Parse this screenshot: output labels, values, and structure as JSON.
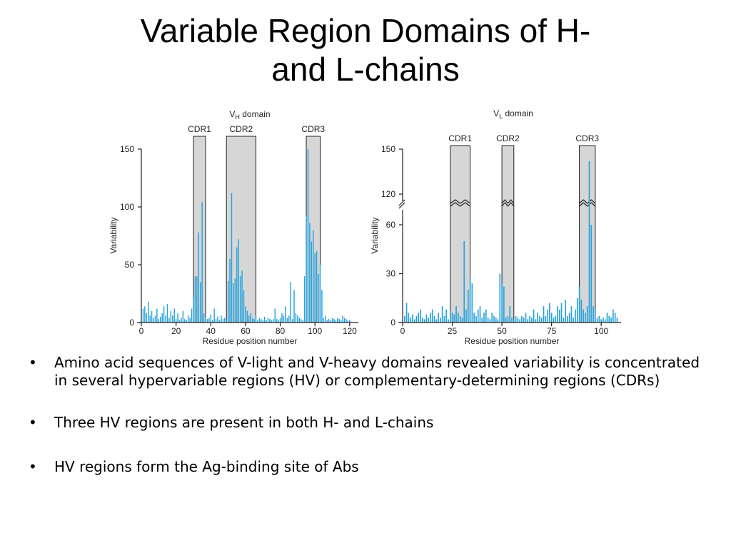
{
  "title": {
    "line1": "Variable Region Domains of H-",
    "line2": "and L-chains"
  },
  "bullet_glyph": "•",
  "bullets": [
    "Amino acid sequences of V-light and V-heavy domains revealed variability is concentrated in several hypervariable regions (HV) or complementary-determining regions (CDRs)",
    "Three HV regions are present in both H- and L-chains",
    "HV regions form the Ag-binding site of Abs"
  ],
  "colors": {
    "bar": "#29a3dd",
    "cdr_fill": "#d6d6d6",
    "axis": "#222222"
  },
  "chart_data": [
    {
      "type": "bar",
      "title_main": "V",
      "title_sub": "H",
      "title_rest": " domain",
      "xlabel": "Residue position number",
      "ylabel": "Variability",
      "xlim": [
        0,
        125
      ],
      "ylim": [
        0,
        150
      ],
      "xticks": [
        0,
        20,
        40,
        60,
        80,
        100,
        120
      ],
      "yticks": [
        0,
        50,
        100,
        150
      ],
      "cdrs": [
        {
          "label": "CDR1",
          "start": 30,
          "end": 37
        },
        {
          "label": "CDR2",
          "start": 49,
          "end": 66
        },
        {
          "label": "CDR3",
          "start": 95,
          "end": 103
        }
      ],
      "x": [
        1,
        2,
        3,
        4,
        5,
        6,
        7,
        8,
        9,
        10,
        11,
        12,
        13,
        14,
        15,
        16,
        17,
        18,
        19,
        20,
        21,
        22,
        23,
        24,
        25,
        26,
        27,
        28,
        29,
        30,
        31,
        32,
        33,
        34,
        35,
        36,
        37,
        38,
        39,
        40,
        41,
        42,
        43,
        44,
        45,
        46,
        47,
        48,
        49,
        50,
        51,
        52,
        53,
        54,
        55,
        56,
        57,
        58,
        59,
        60,
        61,
        62,
        63,
        64,
        65,
        66,
        67,
        68,
        69,
        70,
        71,
        72,
        73,
        74,
        75,
        76,
        77,
        78,
        79,
        80,
        81,
        82,
        83,
        84,
        85,
        86,
        87,
        88,
        89,
        90,
        91,
        92,
        93,
        94,
        95,
        96,
        97,
        98,
        99,
        100,
        101,
        102,
        103,
        104,
        105,
        106,
        107,
        108,
        109,
        110,
        111,
        112,
        113,
        114,
        115,
        116,
        117,
        118,
        119,
        120
      ],
      "values": [
        12,
        14,
        8,
        18,
        6,
        10,
        4,
        6,
        12,
        3,
        5,
        8,
        14,
        6,
        16,
        4,
        10,
        6,
        12,
        3,
        8,
        2,
        4,
        10,
        3,
        2,
        6,
        4,
        12,
        22,
        40,
        40,
        78,
        35,
        104,
        8,
        5,
        3,
        4,
        7,
        2,
        12,
        3,
        5,
        2,
        6,
        3,
        4,
        2,
        36,
        55,
        112,
        34,
        38,
        65,
        72,
        40,
        45,
        28,
        14,
        10,
        6,
        8,
        4,
        3,
        6,
        2,
        4,
        3,
        2,
        5,
        2,
        4,
        3,
        2,
        3,
        12,
        3,
        2,
        4,
        8,
        6,
        14,
        4,
        6,
        35,
        3,
        28,
        8,
        6,
        4,
        3,
        2,
        40,
        92,
        150,
        86,
        70,
        80,
        60,
        62,
        42,
        50,
        28,
        4,
        6,
        2,
        3,
        2,
        4,
        3,
        2,
        4,
        3,
        2,
        6,
        4,
        3,
        2,
        2
      ]
    },
    {
      "type": "bar",
      "title_main": "V",
      "title_sub": "L",
      "title_rest": " domain",
      "xlabel": "Residue position number",
      "ylabel": "Variability",
      "xlim": [
        0,
        110
      ],
      "ylim": [
        0,
        150
      ],
      "axis_break": true,
      "xticks": [
        0,
        25,
        50,
        75,
        100
      ],
      "yticks": [
        0,
        30,
        60,
        120,
        150
      ],
      "cdrs": [
        {
          "label": "CDR1",
          "start": 24,
          "end": 34
        },
        {
          "label": "CDR2",
          "start": 50,
          "end": 56
        },
        {
          "label": "CDR3",
          "start": 89,
          "end": 97
        }
      ],
      "x": [
        1,
        2,
        3,
        4,
        5,
        6,
        7,
        8,
        9,
        10,
        11,
        12,
        13,
        14,
        15,
        16,
        17,
        18,
        19,
        20,
        21,
        22,
        23,
        24,
        25,
        26,
        27,
        28,
        29,
        30,
        31,
        32,
        33,
        34,
        35,
        36,
        37,
        38,
        39,
        40,
        41,
        42,
        43,
        44,
        45,
        46,
        47,
        48,
        49,
        50,
        51,
        52,
        53,
        54,
        55,
        56,
        57,
        58,
        59,
        60,
        61,
        62,
        63,
        64,
        65,
        66,
        67,
        68,
        69,
        70,
        71,
        72,
        73,
        74,
        75,
        76,
        77,
        78,
        79,
        80,
        81,
        82,
        83,
        84,
        85,
        86,
        87,
        88,
        89,
        90,
        91,
        92,
        93,
        94,
        95,
        96,
        97,
        98,
        99,
        100,
        101,
        102,
        103,
        104,
        105,
        106,
        107,
        108
      ],
      "values": [
        4,
        12,
        6,
        3,
        5,
        2,
        4,
        6,
        8,
        3,
        2,
        5,
        3,
        6,
        8,
        4,
        2,
        6,
        3,
        10,
        4,
        8,
        2,
        7,
        6,
        5,
        10,
        6,
        4,
        3,
        50,
        8,
        20,
        28,
        24,
        6,
        4,
        8,
        10,
        3,
        6,
        8,
        3,
        2,
        6,
        4,
        3,
        2,
        30,
        24,
        22,
        3,
        4,
        10,
        3,
        2,
        4,
        3,
        2,
        4,
        3,
        6,
        2,
        4,
        3,
        8,
        2,
        6,
        4,
        3,
        10,
        4,
        8,
        12,
        6,
        3,
        4,
        10,
        8,
        12,
        3,
        14,
        4,
        6,
        10,
        3,
        8,
        15,
        22,
        14,
        8,
        6,
        10,
        142,
        60,
        10,
        8,
        3,
        4,
        2,
        3,
        2,
        6,
        4,
        3,
        8,
        6,
        3
      ]
    }
  ]
}
